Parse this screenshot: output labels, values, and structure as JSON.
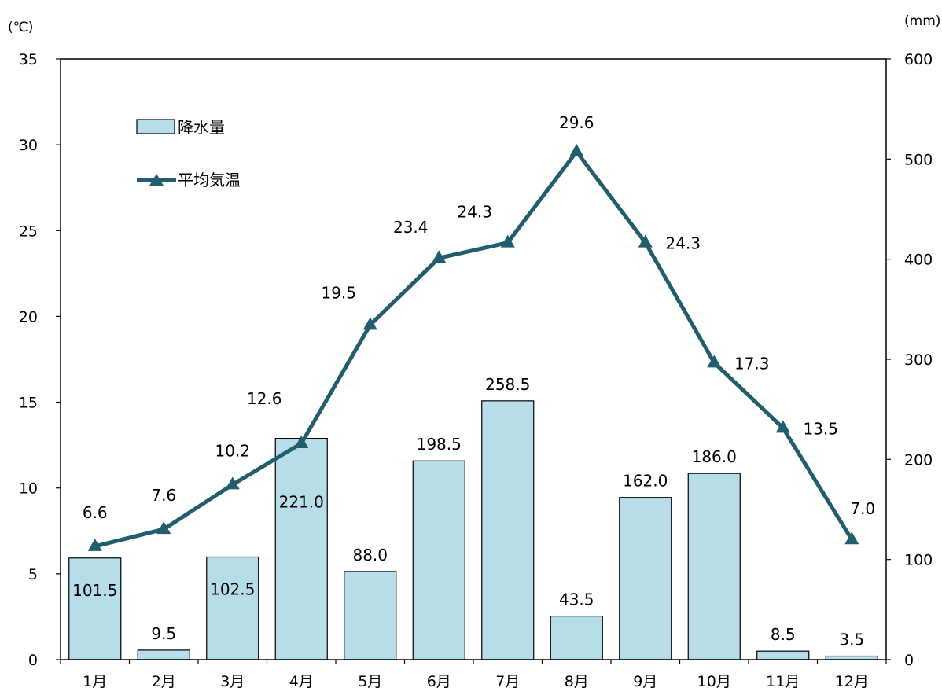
{
  "chart_data": {
    "type": "bar",
    "categories": [
      "1月",
      "2月",
      "3月",
      "4月",
      "5月",
      "6月",
      "7月",
      "8月",
      "9月",
      "10月",
      "11月",
      "12月"
    ],
    "series": [
      {
        "name": "降水量",
        "type": "bar",
        "axis": "right",
        "values": [
          101.5,
          9.5,
          102.5,
          221.0,
          88.0,
          198.5,
          258.5,
          43.5,
          162.0,
          186.0,
          8.5,
          3.5
        ],
        "labels": [
          "101.5",
          "9.5",
          "102.5",
          "221.0",
          "88.0",
          "198.5",
          "258.5",
          "43.5",
          "162.0",
          "186.0",
          "8.5",
          "3.5"
        ],
        "color": "#b7dde8"
      },
      {
        "name": "平均気温",
        "type": "line",
        "axis": "left",
        "values": [
          6.6,
          7.6,
          10.2,
          12.6,
          19.5,
          23.4,
          24.3,
          29.6,
          24.3,
          17.3,
          13.5,
          7.0
        ],
        "labels": [
          "6.6",
          "7.6",
          "10.2",
          "12.6",
          "19.5",
          "23.4",
          "24.3",
          "29.6",
          "24.3",
          "17.3",
          "13.5",
          "7.0"
        ],
        "color": "#215d6c",
        "marker": "triangle"
      }
    ],
    "y_left": {
      "unit_label": "(℃)",
      "lim": [
        0,
        35
      ],
      "ticks": [
        0,
        5,
        10,
        15,
        20,
        25,
        30,
        35
      ],
      "tick_labels": [
        "0",
        "5",
        "10",
        "15",
        "20",
        "25",
        "30",
        "35"
      ]
    },
    "y_right": {
      "unit_label": "(mm)",
      "lim": [
        0,
        600
      ],
      "ticks": [
        0,
        100,
        200,
        300,
        400,
        500,
        600
      ],
      "tick_labels": [
        "0",
        "100",
        "200",
        "300",
        "400",
        "500",
        "600"
      ]
    },
    "grid": false,
    "legend": {
      "position": "top-left-inside"
    }
  }
}
